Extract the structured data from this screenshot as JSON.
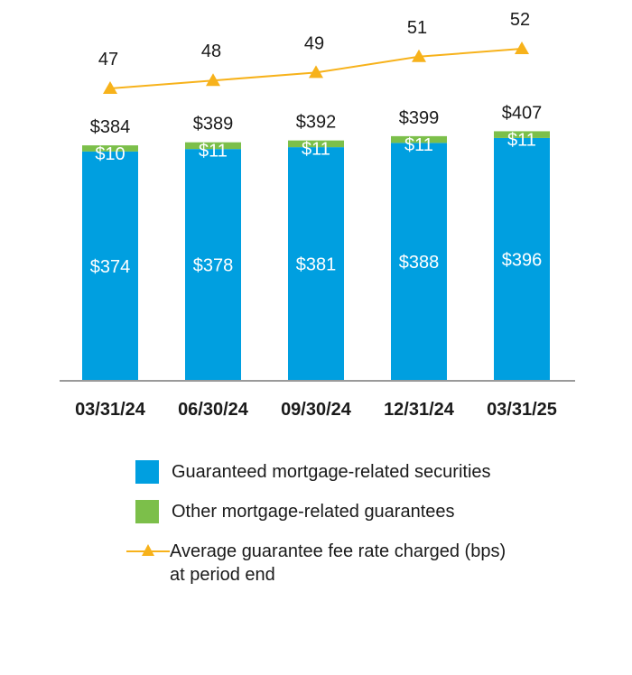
{
  "chart_data": {
    "type": "bar",
    "stacked": true,
    "categories": [
      "03/31/24",
      "06/30/24",
      "09/30/24",
      "12/31/24",
      "03/31/25"
    ],
    "series": [
      {
        "name": "Guaranteed mortgage-related securities",
        "values": [
          374,
          378,
          381,
          388,
          396
        ],
        "labels": [
          "$374",
          "$378",
          "$381",
          "$388",
          "$396"
        ],
        "color": "#009fe0"
      },
      {
        "name": "Other mortgage-related guarantees",
        "values": [
          10,
          11,
          11,
          11,
          11
        ],
        "labels": [
          "$10",
          "$11",
          "$11",
          "$11",
          "$11"
        ],
        "color": "#7cbf4a"
      }
    ],
    "totals": [
      384,
      389,
      392,
      399,
      407
    ],
    "total_labels": [
      "$384",
      "$389",
      "$392",
      "$399",
      "$407"
    ],
    "line": {
      "name": "Average guarantee fee rate charged (bps) at period end",
      "values": [
        47,
        48,
        49,
        51,
        52
      ],
      "labels": [
        "47",
        "48",
        "49",
        "51",
        "52"
      ],
      "color": "#f7b21b",
      "marker": "triangle"
    }
  },
  "legend": {
    "items": [
      {
        "text": "Guaranteed mortgage-related securities",
        "color": "#009fe0"
      },
      {
        "text": "Other mortgage-related guarantees",
        "color": "#7cbf4a"
      },
      {
        "text_line1": "Average guarantee fee rate charged (bps)",
        "text_line2": "at period end",
        "color": "#f7b21b"
      }
    ]
  }
}
